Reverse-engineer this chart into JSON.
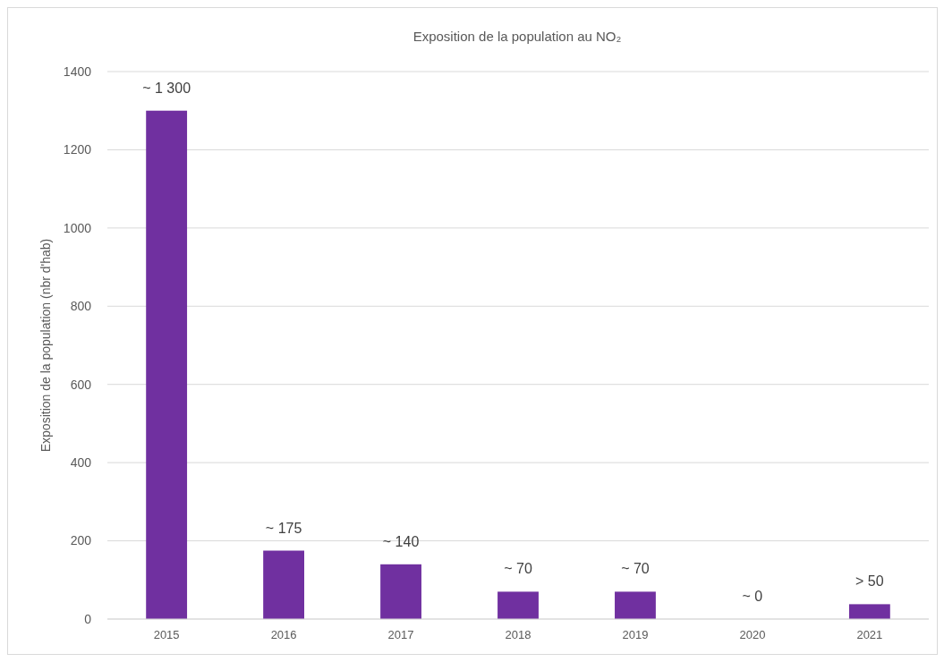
{
  "chart_data": {
    "type": "bar",
    "title": "Exposition de la population au NO₂",
    "ylabel": "Exposition de la population (nbr d'hab)",
    "categories": [
      "2015",
      "2016",
      "2017",
      "2018",
      "2019",
      "2020",
      "2021"
    ],
    "values": [
      1300,
      175,
      140,
      70,
      70,
      0,
      38
    ],
    "value_labels": [
      "~ 1 300",
      "~ 175",
      "~ 140",
      "~ 70",
      "~ 70",
      "~ 0",
      "> 50"
    ],
    "color": "#7030a0",
    "ylim": [
      0,
      1400
    ],
    "yticks": [
      0,
      200,
      400,
      600,
      800,
      1000,
      1200,
      1400
    ],
    "grid": "y"
  }
}
